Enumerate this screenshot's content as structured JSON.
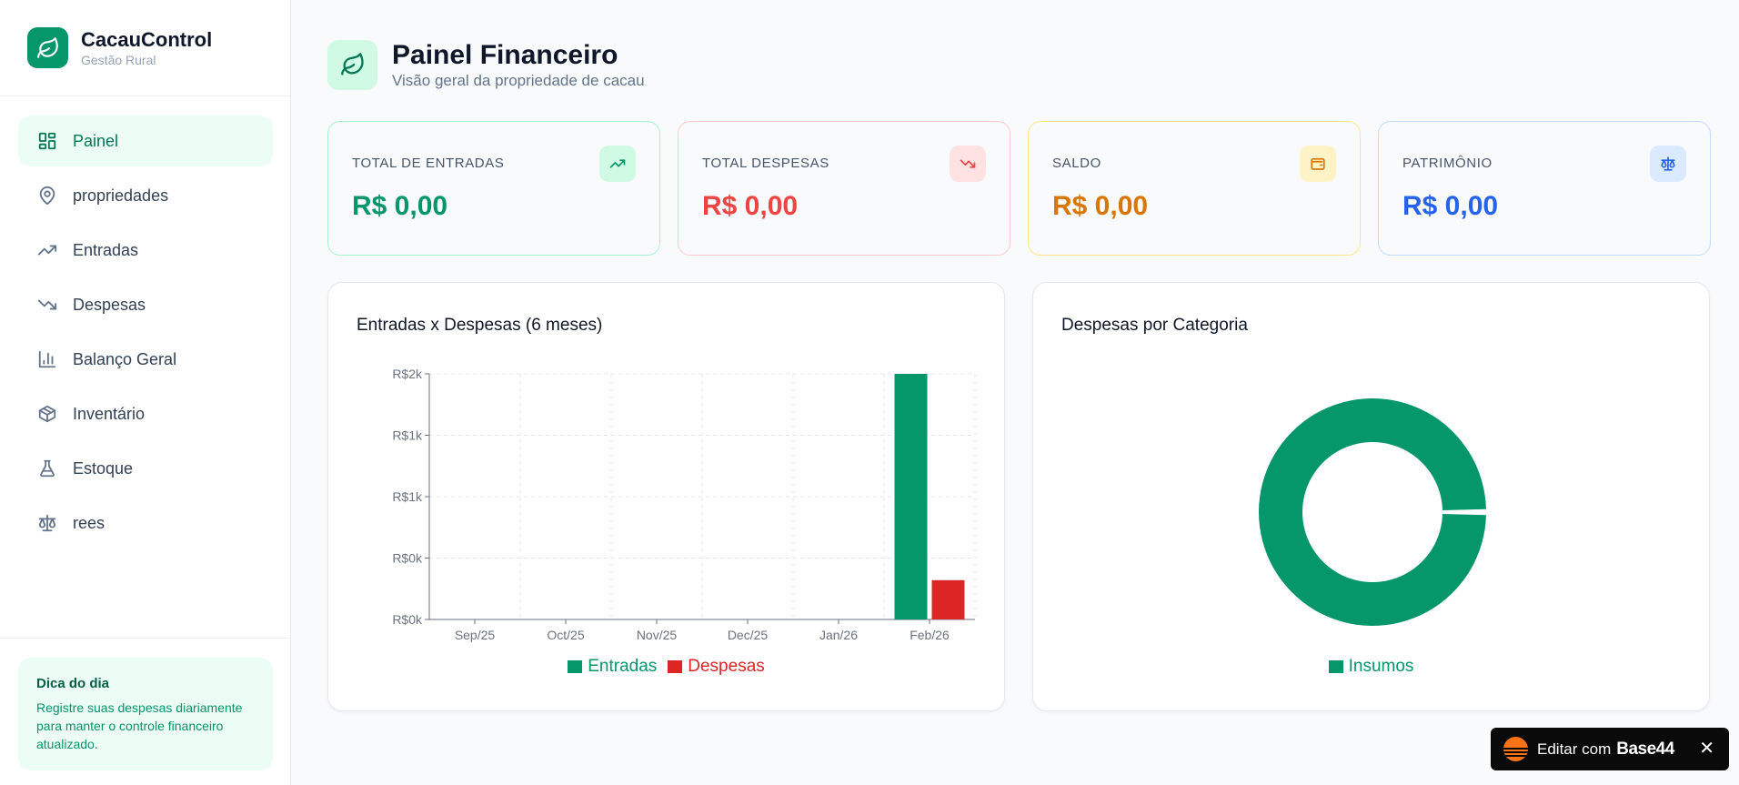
{
  "brand": {
    "title": "CacauControl",
    "subtitle": "Gestão Rural"
  },
  "sidebar": {
    "items": [
      {
        "label": "Painel",
        "icon": "dashboard-icon",
        "active": true
      },
      {
        "label": "propriedades",
        "icon": "map-pin-icon"
      },
      {
        "label": "Entradas",
        "icon": "trending-up-icon"
      },
      {
        "label": "Despesas",
        "icon": "trending-down-icon"
      },
      {
        "label": "Balanço Geral",
        "icon": "bar-chart-icon"
      },
      {
        "label": "Inventário",
        "icon": "package-icon"
      },
      {
        "label": "Estoque",
        "icon": "flask-icon"
      },
      {
        "label": "rees",
        "icon": "scale-icon"
      }
    ],
    "tip": {
      "title": "Dica do dia",
      "body": "Registre suas despesas diariamente para manter o controle financeiro atualizado."
    }
  },
  "header": {
    "title": "Painel Financeiro",
    "subtitle": "Visão geral da propriedade de cacau"
  },
  "stats": [
    {
      "label": "TOTAL DE ENTRADAS",
      "value": "R$ 0,00",
      "color": "#059669",
      "border": "#a7f3d0",
      "iconBg": "#d1fae5",
      "icon": "trending-up-icon"
    },
    {
      "label": "TOTAL DESPESAS",
      "value": "R$ 0,00",
      "color": "#ef4444",
      "border": "#fecaca",
      "iconBg": "#fee2e2",
      "icon": "trending-down-icon"
    },
    {
      "label": "SALDO",
      "value": "R$ 0,00",
      "color": "#d97706",
      "border": "#fde68a",
      "iconBg": "#fef3c7",
      "icon": "wallet-icon"
    },
    {
      "label": "PATRIMÔNIO",
      "value": "R$ 0,00",
      "color": "#2563eb",
      "border": "#bfdbfe",
      "iconBg": "#dbeafe",
      "icon": "scale-icon"
    }
  ],
  "bar_card": {
    "title": "Entradas x Despesas (6 meses)"
  },
  "pie_card": {
    "title": "Despesas por Categoria"
  },
  "chart_data": [
    {
      "type": "bar",
      "title": "Entradas x Despesas (6 meses)",
      "categories": [
        "Sep/25",
        "Oct/25",
        "Nov/25",
        "Dec/25",
        "Jan/26",
        "Feb/26"
      ],
      "series": [
        {
          "name": "Entradas",
          "color": "#059669",
          "values": [
            0,
            0,
            0,
            0,
            0,
            2000
          ]
        },
        {
          "name": "Despesas",
          "color": "#dc2626",
          "values": [
            0,
            0,
            0,
            0,
            0,
            320
          ]
        }
      ],
      "yticks": [
        "R$0k",
        "R$0k",
        "R$1k",
        "R$1k",
        "R$2k"
      ],
      "ylim": [
        0,
        2000
      ],
      "grid": true,
      "legend": "bottom"
    },
    {
      "type": "pie",
      "title": "Despesas por Categoria",
      "slices": [
        {
          "name": "Insumos",
          "value": 100,
          "color": "#059669"
        }
      ],
      "donut": true,
      "legend": "bottom"
    }
  ],
  "badge": {
    "text": "Editar com",
    "brand": "Base44",
    "close": "✕"
  }
}
